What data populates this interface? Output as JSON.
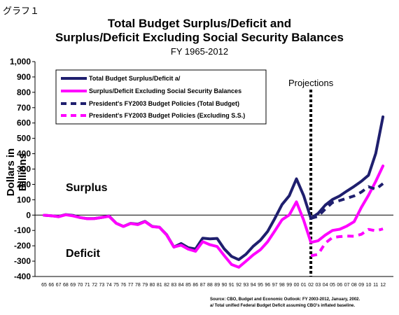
{
  "header": {
    "corner_label": "グラフ１",
    "title_line1": "Total Budget Surplus/Deficit and",
    "title_line2": "Surplus/Deficit Excluding Social Security Balances",
    "subtitle": "FY 1965-2012"
  },
  "colors": {
    "total": "#1f1f6e",
    "excluding_ss": "#ff00ff"
  },
  "chart_data": {
    "type": "line",
    "title": "Total Budget Surplus/Deficit and Surplus/Deficit Excluding Social Security Balances",
    "subtitle": "FY 1965-2012",
    "ylabel": "Dollars in Billions",
    "xlabel": "",
    "ylim": [
      -400,
      1000
    ],
    "yticks": [
      -400,
      -300,
      -200,
      -100,
      0,
      100,
      200,
      300,
      400,
      500,
      600,
      700,
      800,
      900,
      1000
    ],
    "ytick_labels": [
      "-400",
      "-300",
      "-200",
      "-100",
      "0",
      "100",
      "200",
      "300",
      "400",
      "500",
      "600",
      "700",
      "800",
      "900",
      "1,000"
    ],
    "x_tick_labels": [
      "65",
      "66",
      "67",
      "68",
      "69",
      "70",
      "71",
      "72",
      "73",
      "74",
      "75",
      "76",
      "77",
      "78",
      "79",
      "80",
      "81",
      "82",
      "83",
      "84",
      "85",
      "86",
      "87",
      "88",
      "89",
      "90",
      "91",
      "92",
      "93",
      "94",
      "95",
      "96",
      "97",
      "98",
      "99",
      "00",
      "01",
      "02",
      "03",
      "04",
      "05",
      "06",
      "07",
      "08",
      "09",
      "10",
      "11",
      "12"
    ],
    "grid": false,
    "legend_position": "top-left",
    "annotations": {
      "projections": "Projections",
      "projection_start": "02",
      "surplus": "Surplus",
      "deficit": "Deficit"
    },
    "series": [
      {
        "name": "Total Budget Surplus/Deficit a/",
        "style": "solid",
        "x": [
          "65",
          "66",
          "67",
          "68",
          "69",
          "70",
          "71",
          "72",
          "73",
          "74",
          "75",
          "76",
          "77",
          "78",
          "79",
          "80",
          "81",
          "82",
          "83",
          "84",
          "85",
          "86",
          "87",
          "88",
          "89",
          "90",
          "91",
          "92",
          "93",
          "94",
          "95",
          "96",
          "97",
          "98",
          "99",
          "00",
          "01",
          "02",
          "03",
          "04",
          "05",
          "06",
          "07",
          "08",
          "09",
          "10",
          "11",
          "12"
        ],
        "values": [
          -1,
          -4,
          -9,
          3,
          -2,
          -16,
          -23,
          -22,
          -15,
          -6,
          -53,
          -74,
          -54,
          -59,
          -41,
          -74,
          -79,
          -128,
          -208,
          -185,
          -212,
          -221,
          -150,
          -155,
          -152,
          -221,
          -269,
          -290,
          -255,
          -203,
          -164,
          -107,
          -22,
          69,
          126,
          236,
          127,
          -21,
          11,
          65,
          102,
          125,
          157,
          187,
          220,
          260,
          402,
          640
        ]
      },
      {
        "name": "Surplus/Deficit Excluding Social Security Balances",
        "style": "solid",
        "x": [
          "65",
          "66",
          "67",
          "68",
          "69",
          "70",
          "71",
          "72",
          "73",
          "74",
          "75",
          "76",
          "77",
          "78",
          "79",
          "80",
          "81",
          "82",
          "83",
          "84",
          "85",
          "86",
          "87",
          "88",
          "89",
          "90",
          "91",
          "92",
          "93",
          "94",
          "95",
          "96",
          "97",
          "98",
          "99",
          "00",
          "01",
          "02",
          "03",
          "04",
          "05",
          "06",
          "07",
          "08",
          "09",
          "10",
          "11",
          "12"
        ],
        "values": [
          -1,
          -4,
          -11,
          2,
          -5,
          -16,
          -24,
          -23,
          -15,
          -8,
          -53,
          -74,
          -55,
          -62,
          -43,
          -75,
          -80,
          -130,
          -208,
          -196,
          -222,
          -236,
          -173,
          -193,
          -205,
          -265,
          -322,
          -340,
          -300,
          -259,
          -226,
          -174,
          -103,
          -30,
          1,
          86,
          -33,
          -178,
          -167,
          -130,
          -100,
          -92,
          -71,
          -43,
          50,
          130,
          220,
          320
        ]
      },
      {
        "name": "President's FY2003 Budget Policies (Total Budget)",
        "style": "dashed",
        "x": [
          "02",
          "03",
          "04",
          "05",
          "06",
          "07",
          "08",
          "09",
          "10",
          "11",
          "12"
        ],
        "values": [
          -21,
          -8,
          40,
          82,
          95,
          110,
          125,
          150,
          185,
          168,
          205
        ]
      },
      {
        "name": "President's FY2003 Budget Policies (Excluding S.S.)",
        "style": "dashed",
        "x": [
          "02",
          "03",
          "04",
          "05",
          "06",
          "07",
          "08",
          "09",
          "10",
          "11",
          "12"
        ],
        "values": [
          -265,
          -256,
          -182,
          -146,
          -140,
          -137,
          -138,
          -125,
          -93,
          -102,
          -90
        ]
      }
    ]
  },
  "footer": {
    "source_line1": "Source: CBO, Budget and Economic Outlook: FY 2003-2012, January, 2002.",
    "source_line2": "a/ Total unified Federal Budget Deficit assuming CBO's inflated baseline."
  }
}
